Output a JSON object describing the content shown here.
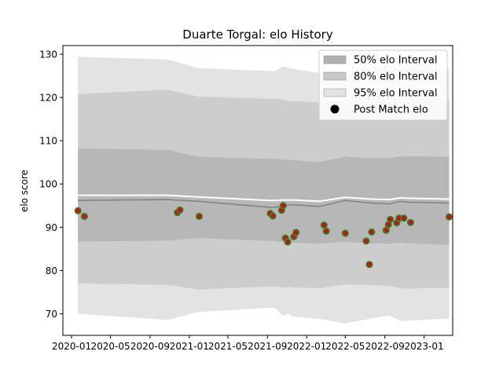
{
  "chart_data": {
    "type": "line",
    "title": "Duarte Torgal: elo History",
    "xlabel": "",
    "ylabel": "elo score",
    "xlim": [
      "2019-12-05",
      "2023-03-31"
    ],
    "ylim": [
      65,
      132
    ],
    "x_ticks": [
      "2020-01",
      "2020-05",
      "2020-09",
      "2021-01",
      "2021-05",
      "2021-09",
      "2022-01",
      "2022-05",
      "2022-09",
      "2023-01"
    ],
    "y_ticks": [
      70,
      80,
      90,
      100,
      110,
      120,
      130
    ],
    "grid": false,
    "legend_position": "top-right",
    "legend": [
      {
        "label": "50% elo Interval",
        "kind": "patch",
        "color": "#b0b0b0"
      },
      {
        "label": "80% elo Interval",
        "kind": "patch",
        "color": "#c8c8c8"
      },
      {
        "label": "95% elo Interval",
        "kind": "patch",
        "color": "#e3e3e3"
      },
      {
        "label": "Post Match elo",
        "kind": "marker",
        "color": "#000000"
      }
    ],
    "colors": {
      "band95": "#e3e3e3",
      "band80": "#cdcdcd",
      "band50": "#b7b7b7",
      "mean_line": "#808080",
      "upper_line": "#ffffff",
      "point_fill": "#cc1111",
      "point_edge": "#2e8b2e"
    },
    "bands": {
      "x": [
        "2020-01-21",
        "2020-10-25",
        "2021-01-28",
        "2021-09-10",
        "2021-09-25",
        "2021-10-19",
        "2021-11-05",
        "2021-11-20",
        "2022-02-10",
        "2022-05-01",
        "2022-07-20",
        "2022-09-15",
        "2022-10-20",
        "2022-11-10",
        "2023-03-20"
      ],
      "mean": [
        96.2,
        96.4,
        96.0,
        94.6,
        94.6,
        95.0,
        95.2,
        95.2,
        94.8,
        96.2,
        95.6,
        95.4,
        96.0,
        95.8,
        95.6
      ],
      "upper_line": [
        97.4,
        97.4,
        97.0,
        96.2,
        96.2,
        96.3,
        96.3,
        96.3,
        96.0,
        96.9,
        96.5,
        96.4,
        96.8,
        96.7,
        96.5
      ],
      "p50_low": [
        86.7,
        86.9,
        87.5,
        86.8,
        86.8,
        86.6,
        86.5,
        86.4,
        86.2,
        86.6,
        86.3,
        86.2,
        86.4,
        86.3,
        85.9
      ],
      "p50_high": [
        108.2,
        107.9,
        106.3,
        105.8,
        105.8,
        105.6,
        105.5,
        105.5,
        105.1,
        106.3,
        106.0,
        106.0,
        106.4,
        106.4,
        106.3
      ],
      "p80_low": [
        77.0,
        76.7,
        75.6,
        76.3,
        76.3,
        76.0,
        76.2,
        76.1,
        75.9,
        76.8,
        76.6,
        76.5,
        75.9,
        75.8,
        76.0
      ],
      "p80_high": [
        120.8,
        121.8,
        120.2,
        119.7,
        119.7,
        119.4,
        119.2,
        119.1,
        118.9,
        119.0,
        118.8,
        118.7,
        119.0,
        119.2,
        119.6
      ],
      "p95_low": [
        70.0,
        68.6,
        70.4,
        71.4,
        71.3,
        69.6,
        70.0,
        69.3,
        68.8,
        67.8,
        68.9,
        69.6,
        68.3,
        68.4,
        68.9
      ],
      "p95_high": [
        129.4,
        128.8,
        126.8,
        126.1,
        126.1,
        127.2,
        126.8,
        126.6,
        125.6,
        125.3,
        125.7,
        125.9,
        126.2,
        126.4,
        126.6
      ]
    },
    "series": [
      {
        "name": "Post Match elo",
        "type": "scatter",
        "points": [
          {
            "x": "2020-01-21",
            "y": 93.8
          },
          {
            "x": "2020-02-10",
            "y": 92.5
          },
          {
            "x": "2020-11-25",
            "y": 93.4
          },
          {
            "x": "2020-12-03",
            "y": 94.0
          },
          {
            "x": "2021-02-01",
            "y": 92.5
          },
          {
            "x": "2021-09-10",
            "y": 93.2
          },
          {
            "x": "2021-09-18",
            "y": 92.6
          },
          {
            "x": "2021-10-15",
            "y": 93.9
          },
          {
            "x": "2021-10-20",
            "y": 95.0
          },
          {
            "x": "2021-10-27",
            "y": 87.5
          },
          {
            "x": "2021-11-03",
            "y": 86.6
          },
          {
            "x": "2021-11-22",
            "y": 87.8
          },
          {
            "x": "2021-11-29",
            "y": 88.8
          },
          {
            "x": "2022-02-24",
            "y": 90.5
          },
          {
            "x": "2022-03-03",
            "y": 89.1
          },
          {
            "x": "2022-05-01",
            "y": 88.6
          },
          {
            "x": "2022-07-05",
            "y": 86.8
          },
          {
            "x": "2022-07-15",
            "y": 81.4
          },
          {
            "x": "2022-07-22",
            "y": 88.9
          },
          {
            "x": "2022-09-05",
            "y": 89.3
          },
          {
            "x": "2022-09-12",
            "y": 90.6
          },
          {
            "x": "2022-09-18",
            "y": 91.8
          },
          {
            "x": "2022-10-08",
            "y": 91.0
          },
          {
            "x": "2022-10-15",
            "y": 92.1
          },
          {
            "x": "2022-10-30",
            "y": 92.1
          },
          {
            "x": "2022-11-20",
            "y": 91.1
          },
          {
            "x": "2023-03-20",
            "y": 92.4
          }
        ]
      }
    ]
  }
}
